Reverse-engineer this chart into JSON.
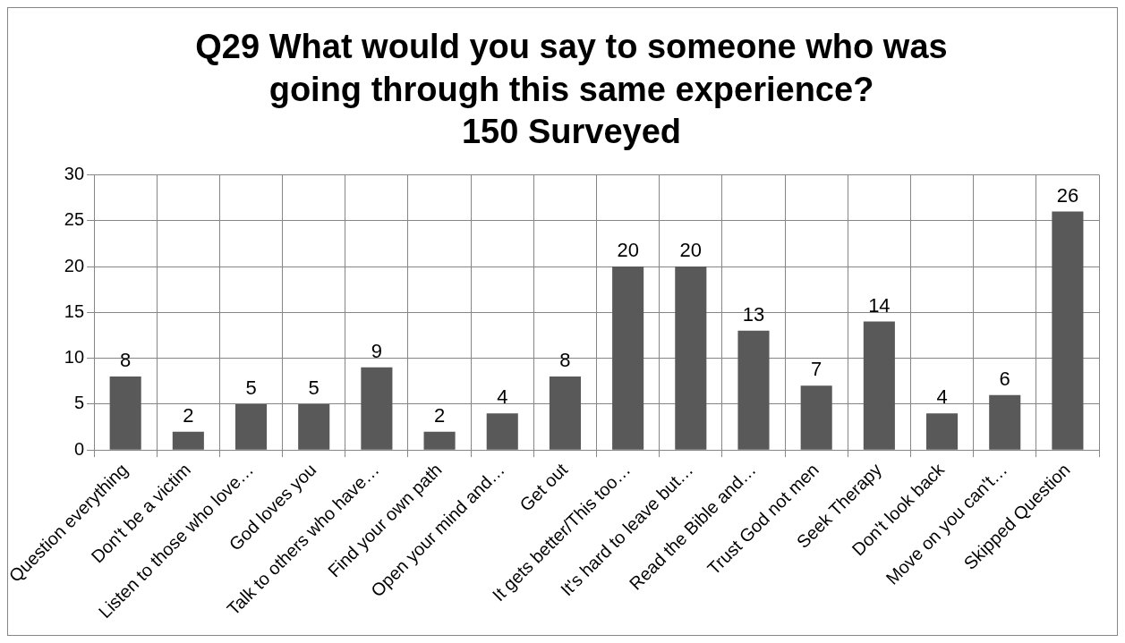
{
  "chart_data": {
    "type": "bar",
    "title": "Q29 What would you say to someone who was\ngoing through this same experience?\n150 Surveyed",
    "categories": [
      "Question everything",
      "Don't be a victim",
      "Listen to those who love…",
      "God loves you",
      "Talk to others who have…",
      "Find your own path",
      "Open your mind and…",
      "Get out",
      "It gets better/This too…",
      "It's hard to leave but…",
      "Read the Bible and…",
      "Trust God not men",
      "Seek Therapy",
      "Don't look back",
      "Move on you can't…",
      "Skipped Question"
    ],
    "values": [
      8,
      2,
      5,
      5,
      9,
      2,
      4,
      8,
      20,
      20,
      13,
      7,
      14,
      4,
      6,
      26
    ],
    "color": "#595959",
    "ylim": [
      0,
      30
    ],
    "yticks": [
      0,
      5,
      10,
      15,
      20,
      25,
      30
    ],
    "grid": true,
    "data_labels": true,
    "legend": false
  }
}
